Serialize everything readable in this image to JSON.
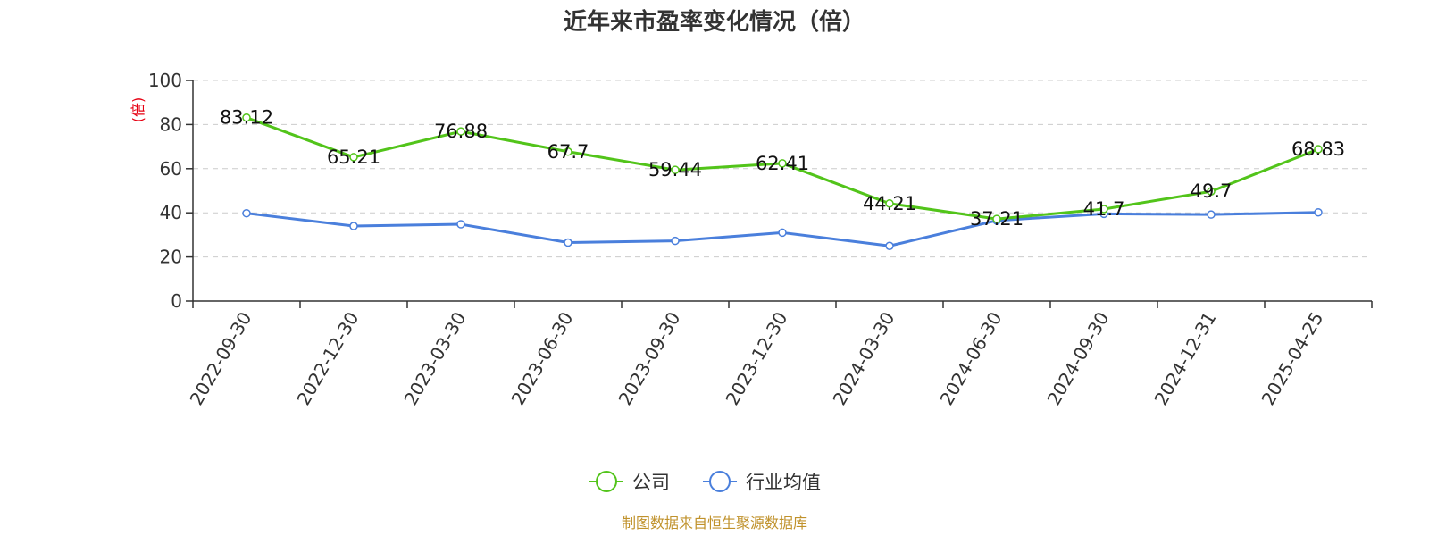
{
  "chart_data": {
    "type": "line",
    "title": "近年来市盈率变化情况（倍）",
    "ylabel": "(倍)",
    "ylim": [
      0,
      100
    ],
    "yticks": [
      0,
      20,
      40,
      60,
      80,
      100
    ],
    "grid": true,
    "legend_position": "bottom",
    "categories": [
      "2022-09-30",
      "2022-12-30",
      "2023-03-30",
      "2023-06-30",
      "2023-09-30",
      "2023-12-30",
      "2024-03-30",
      "2024-06-30",
      "2024-09-30",
      "2024-12-31",
      "2025-04-25"
    ],
    "series": [
      {
        "name": "公司",
        "color": "#52c41a",
        "values": [
          83.12,
          65.21,
          76.88,
          67.7,
          59.44,
          62.41,
          44.21,
          37.21,
          41.7,
          49.7,
          68.83
        ],
        "labels": [
          "83.12",
          "65.21",
          "76.88",
          "67.7",
          "59.44",
          "62.41",
          "44.21",
          "37.21",
          "41.7",
          "49.7",
          "68.83"
        ]
      },
      {
        "name": "行业均值",
        "color": "#4a7fdc",
        "values": [
          39.8,
          34.0,
          34.8,
          26.5,
          27.3,
          31.0,
          25.0,
          36.5,
          39.5,
          39.2,
          40.2
        ]
      }
    ],
    "ylabel_color": "#e60012",
    "source": "制图数据来自恒生聚源数据库",
    "source_color": "#c0922c"
  }
}
